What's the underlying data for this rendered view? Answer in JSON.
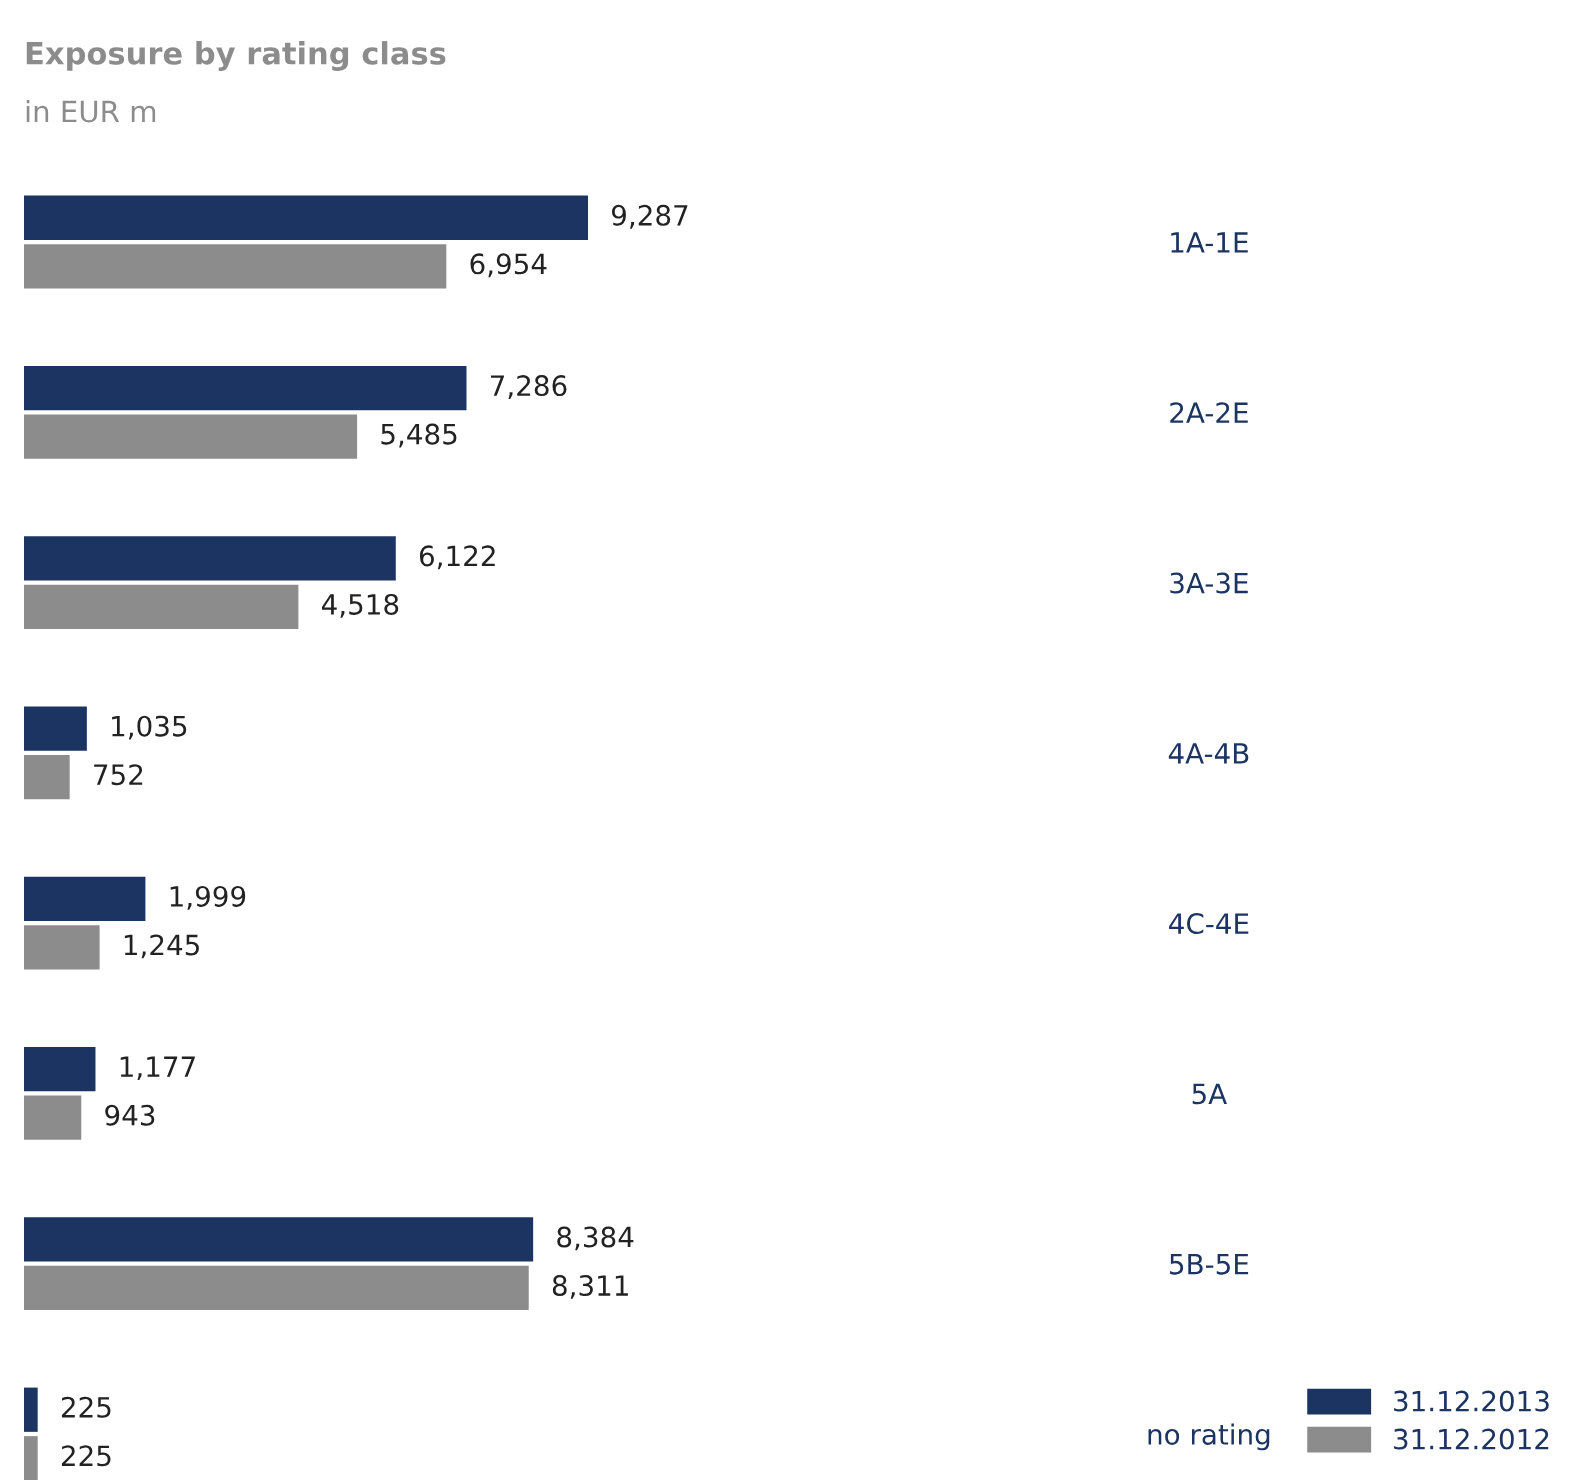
{
  "chart_data": {
    "type": "bar",
    "orientation": "horizontal",
    "title": "Exposure by rating class",
    "subtitle": "in EUR m",
    "categories": [
      "1A-1E",
      "2A-2E",
      "3A-3E",
      "4A-4B",
      "4C-4E",
      "5A",
      "5B-5E",
      "no rating"
    ],
    "series": [
      {
        "name": "31.12.2013",
        "color": "#1b3461",
        "values": [
          9287,
          7286,
          6122,
          1035,
          1999,
          1177,
          8384,
          225
        ],
        "value_labels": [
          "9,287",
          "7,286",
          "6,122",
          "1,035",
          "1,999",
          "1,177",
          "8,384",
          "225"
        ]
      },
      {
        "name": "31.12.2012",
        "color": "#8c8c8c",
        "values": [
          6954,
          5485,
          4518,
          752,
          1245,
          943,
          8311,
          225
        ],
        "value_labels": [
          "6,954",
          "5,485",
          "4,518",
          "752",
          "1,245",
          "943",
          "8,311",
          "225"
        ]
      }
    ],
    "legend": "bottom right",
    "grid": false
  }
}
